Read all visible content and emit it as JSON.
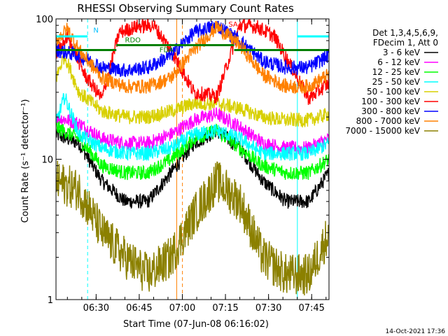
{
  "chart_data": {
    "type": "line",
    "title": "RHESSI Observing Summary Count Rates",
    "xlabel": "Start Time (07-Jun-08 06:16:02)",
    "ylabel": "Count Rate (s⁻¹ detector⁻¹)",
    "y_scale": "log",
    "ylim": [
      1,
      100
    ],
    "xlim_minutes": [
      0,
      95
    ],
    "x_ticks": [
      "06:30",
      "06:45",
      "07:00",
      "07:15",
      "07:30",
      "07:45"
    ],
    "y_ticks": [
      "1",
      "10",
      "100"
    ],
    "grid": false,
    "legend_position": "right",
    "legend_header": [
      "Det 1,3,4,5,6,9,",
      "FDecim 1, Att 0"
    ],
    "series": [
      {
        "name": "3 - 6 keV",
        "color": "#000000",
        "x": [
          0,
          8,
          16,
          24,
          32,
          40,
          48,
          56,
          64,
          72,
          80,
          88,
          95
        ],
        "y": [
          15,
          13,
          7,
          5,
          5,
          8,
          13,
          16,
          12,
          7,
          5,
          5,
          8
        ]
      },
      {
        "name": "6 - 12 keV",
        "color": "#ff00ff",
        "x": [
          0,
          8,
          16,
          24,
          32,
          40,
          48,
          56,
          64,
          72,
          80,
          88,
          95
        ],
        "y": [
          20,
          18,
          14,
          13,
          13,
          15,
          19,
          21,
          17,
          13,
          12,
          12,
          14
        ]
      },
      {
        "name": "12 - 25 keV",
        "color": "#00ff00",
        "x": [
          0,
          8,
          16,
          24,
          32,
          40,
          48,
          56,
          64,
          72,
          80,
          88,
          95
        ],
        "y": [
          17,
          14,
          9,
          8,
          8,
          10,
          14,
          16,
          12,
          9,
          8,
          8,
          10
        ]
      },
      {
        "name": "25 - 50 keV",
        "color": "#00ffff",
        "x": [
          0,
          3,
          8,
          16,
          24,
          32,
          40,
          48,
          56,
          64,
          72,
          80,
          88,
          95
        ],
        "y": [
          18,
          28,
          15,
          12,
          11,
          11,
          12,
          15,
          16,
          14,
          11,
          11,
          11,
          13
        ]
      },
      {
        "name": "50 - 100 keV",
        "color": "#d8d000",
        "x": [
          0,
          3,
          8,
          16,
          24,
          32,
          40,
          48,
          56,
          64,
          72,
          80,
          88,
          95
        ],
        "y": [
          38,
          55,
          30,
          22,
          20,
          20,
          22,
          25,
          25,
          23,
          20,
          19,
          19,
          21
        ]
      },
      {
        "name": "100 - 300 keV",
        "color": "#ff0000",
        "x": [
          0,
          4,
          10,
          16,
          22,
          28,
          34,
          40,
          48,
          56,
          64,
          70,
          76,
          82,
          88,
          95
        ],
        "y": [
          55,
          75,
          40,
          27,
          80,
          88,
          90,
          60,
          30,
          28,
          90,
          88,
          75,
          45,
          27,
          35
        ]
      },
      {
        "name": "300 - 800 keV",
        "color": "#0000ff",
        "x": [
          0,
          8,
          16,
          24,
          32,
          40,
          48,
          56,
          64,
          72,
          80,
          88,
          95
        ],
        "y": [
          60,
          55,
          45,
          43,
          45,
          55,
          80,
          90,
          70,
          50,
          45,
          45,
          55
        ]
      },
      {
        "name": "800 - 7000 keV",
        "color": "#ff8000",
        "x": [
          0,
          4,
          8,
          16,
          24,
          32,
          40,
          48,
          56,
          64,
          72,
          80,
          88,
          95
        ],
        "y": [
          70,
          85,
          60,
          38,
          33,
          33,
          38,
          60,
          88,
          65,
          40,
          33,
          33,
          40
        ]
      },
      {
        "name": "7000 - 15000 keV",
        "color": "#8b8000",
        "x": [
          0,
          8,
          16,
          24,
          32,
          40,
          48,
          56,
          64,
          72,
          80,
          88,
          95
        ],
        "y": [
          7,
          6,
          3,
          2,
          1.5,
          2,
          4,
          7,
          5,
          2,
          1.5,
          1.5,
          3
        ]
      }
    ],
    "annotations": [
      {
        "text": "N",
        "color": "#00c0ff"
      },
      {
        "text": "RDO",
        "color": "#008000"
      },
      {
        "text": "FDA",
        "color": "#008000"
      },
      {
        "text": "SAA",
        "color": "#ff0000"
      }
    ],
    "status_bars": [
      {
        "label": "RDO",
        "color": "#008000",
        "x": [
          0,
          21
        ],
        "y": 60
      },
      {
        "label": "RDO",
        "color": "#008000",
        "x": [
          21,
          62
        ],
        "y": 65
      },
      {
        "label": "RDO",
        "color": "#008000",
        "x": [
          62,
          95
        ],
        "y": 60
      },
      {
        "label": "N",
        "color": "#00ffff",
        "x": [
          0,
          11
        ],
        "y": 75
      },
      {
        "label": "N",
        "color": "#00ffff",
        "x": [
          84,
          95
        ],
        "y": 75
      }
    ],
    "vertical_markers": [
      {
        "x": 11,
        "color": "#00ffff",
        "style": "dashed"
      },
      {
        "x": 42,
        "color": "#ff8000",
        "style": "solid"
      },
      {
        "x": 44,
        "color": "#ff8000",
        "style": "dashed"
      },
      {
        "x": 84,
        "color": "#00ffff",
        "style": "solid"
      },
      {
        "x": 95,
        "color": "#00ffff",
        "style": "dashed"
      }
    ]
  },
  "footer_timestamp": "14-Oct-2021 17:36"
}
